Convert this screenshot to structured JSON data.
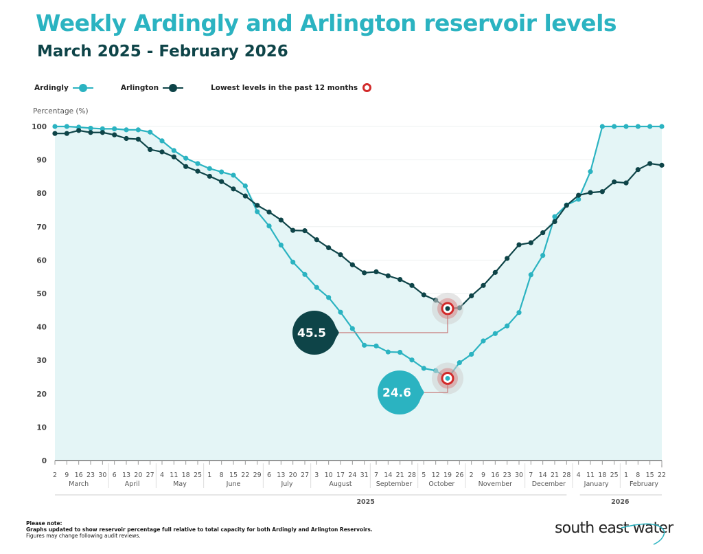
{
  "chart_data": {
    "type": "line",
    "title": "Weekly Ardingly and Arlington reservoir levels",
    "subtitle": "March 2025 - February 2026",
    "ylabel": "Percentage (%)",
    "ylim": [
      0,
      100
    ],
    "yticks": [
      0,
      10,
      20,
      30,
      40,
      50,
      60,
      70,
      80,
      90,
      100
    ],
    "grid": true,
    "legend_position": "top-left",
    "x": [
      "2025-03-02",
      "2025-03-09",
      "2025-03-16",
      "2025-03-23",
      "2025-03-30",
      "2025-04-06",
      "2025-04-13",
      "2025-04-20",
      "2025-04-27",
      "2025-05-04",
      "2025-05-11",
      "2025-05-18",
      "2025-05-25",
      "2025-06-01",
      "2025-06-08",
      "2025-06-15",
      "2025-06-22",
      "2025-06-29",
      "2025-07-06",
      "2025-07-13",
      "2025-07-20",
      "2025-07-27",
      "2025-08-03",
      "2025-08-10",
      "2025-08-17",
      "2025-08-24",
      "2025-08-31",
      "2025-09-07",
      "2025-09-14",
      "2025-09-21",
      "2025-09-28",
      "2025-10-05",
      "2025-10-12",
      "2025-10-19",
      "2025-10-26",
      "2025-11-02",
      "2025-11-09",
      "2025-11-16",
      "2025-11-23",
      "2025-11-30",
      "2025-12-07",
      "2025-12-14",
      "2025-12-21",
      "2025-12-28",
      "2026-01-04",
      "2026-01-11",
      "2026-01-18",
      "2026-01-25",
      "2026-02-01",
      "2026-02-08",
      "2026-02-15",
      "2026-02-22"
    ],
    "month_names": [
      "January",
      "February",
      "March",
      "April",
      "May",
      "June",
      "July",
      "August",
      "September",
      "October",
      "November",
      "December"
    ],
    "years": [
      "2025",
      "2026"
    ],
    "series": [
      {
        "name": "Ardingly",
        "color": "#2bb3c1",
        "values": [
          100,
          100,
          99.8,
          99.5,
          99.3,
          99.3,
          99.0,
          99.0,
          98.3,
          95.7,
          92.8,
          90.5,
          88.9,
          87.4,
          86.4,
          85.4,
          82.2,
          74.5,
          70.2,
          64.5,
          59.4,
          55.7,
          51.8,
          48.8,
          44.4,
          39.5,
          34.5,
          34.3,
          32.5,
          32.4,
          30.1,
          27.6,
          26.9,
          24.6,
          29.3,
          31.8,
          35.8,
          38.0,
          40.3,
          44.3,
          55.6,
          61.4,
          73.0,
          76.5,
          78.2,
          86.5,
          100,
          100,
          100,
          100,
          100,
          100
        ]
      },
      {
        "name": "Arlington",
        "color": "#0e4448",
        "values": [
          97.9,
          97.9,
          98.8,
          98.2,
          98.2,
          97.5,
          96.4,
          96.2,
          93.1,
          92.4,
          90.9,
          88.0,
          86.6,
          85.1,
          83.5,
          81.3,
          79.2,
          76.4,
          74.4,
          72.0,
          68.9,
          68.8,
          66.1,
          63.7,
          61.6,
          58.6,
          56.2,
          56.5,
          55.3,
          54.2,
          52.4,
          49.6,
          48.0,
          45.5,
          45.7,
          49.3,
          52.4,
          56.3,
          60.5,
          64.6,
          65.2,
          68.2,
          71.5,
          76.4,
          79.4,
          80.2,
          80.5,
          83.4,
          83.1,
          87.1,
          88.9,
          88.4
        ]
      }
    ],
    "annotations": [
      {
        "series": "Arlington",
        "date": "2025-10-19",
        "value": "45.5"
      },
      {
        "series": "Ardingly",
        "date": "2025-10-19",
        "value": "24.6"
      }
    ],
    "lowest_marker_label": "Lowest levels in the past 12 months",
    "lowest_marker_color": "#d22a2a",
    "fill_color": "#e4f5f6"
  },
  "note": {
    "heading": "Please note:",
    "line1": "Graphs updated to show reservoir percentage full relative to total capacity for both Ardingly and Arlington Reservoirs.",
    "line2": "Figures may change following audit reviews."
  },
  "logo": "south east water"
}
